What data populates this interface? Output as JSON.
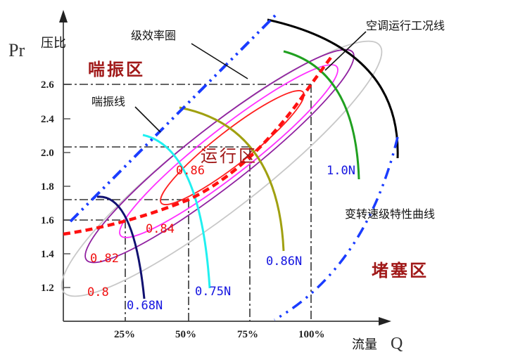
{
  "axes": {
    "y_symbol": "Pr",
    "y_label": "压比",
    "x_label": "流量",
    "x_symbol": "Q",
    "y_ticks": [
      "2.6",
      "2.4",
      "2.0",
      "1.8",
      "1.6",
      "1.4",
      "1.2"
    ],
    "x_ticks": [
      "25%",
      "50%",
      "75%",
      "100%"
    ]
  },
  "zones": {
    "surge": "喘振区",
    "operating": "运行区",
    "choke": "堵塞区"
  },
  "annotations": {
    "efficiency_circles": "级效率圈",
    "surge_line": "喘振线",
    "operating_line": "空调运行工况线",
    "speed_curves": "变转速级特性曲线"
  },
  "efficiency_labels": [
    "0.86",
    "0.84",
    "0.82",
    "0.8"
  ],
  "speed_labels": [
    "0.68N",
    "0.75N",
    "0.86N",
    "1.0N"
  ],
  "colors": {
    "surge_line": "#1a3cff",
    "operating_line": "#ff1010",
    "eff_086": "#ff2020",
    "eff_084": "#ff30ff",
    "eff_082": "#9020a0",
    "eff_080": "#c8c8c8",
    "speed_068": "#101070",
    "speed_075": "#20f0f0",
    "speed_086": "#a0a010",
    "speed_100": "#20a020",
    "choke_arc": "#000000"
  }
}
